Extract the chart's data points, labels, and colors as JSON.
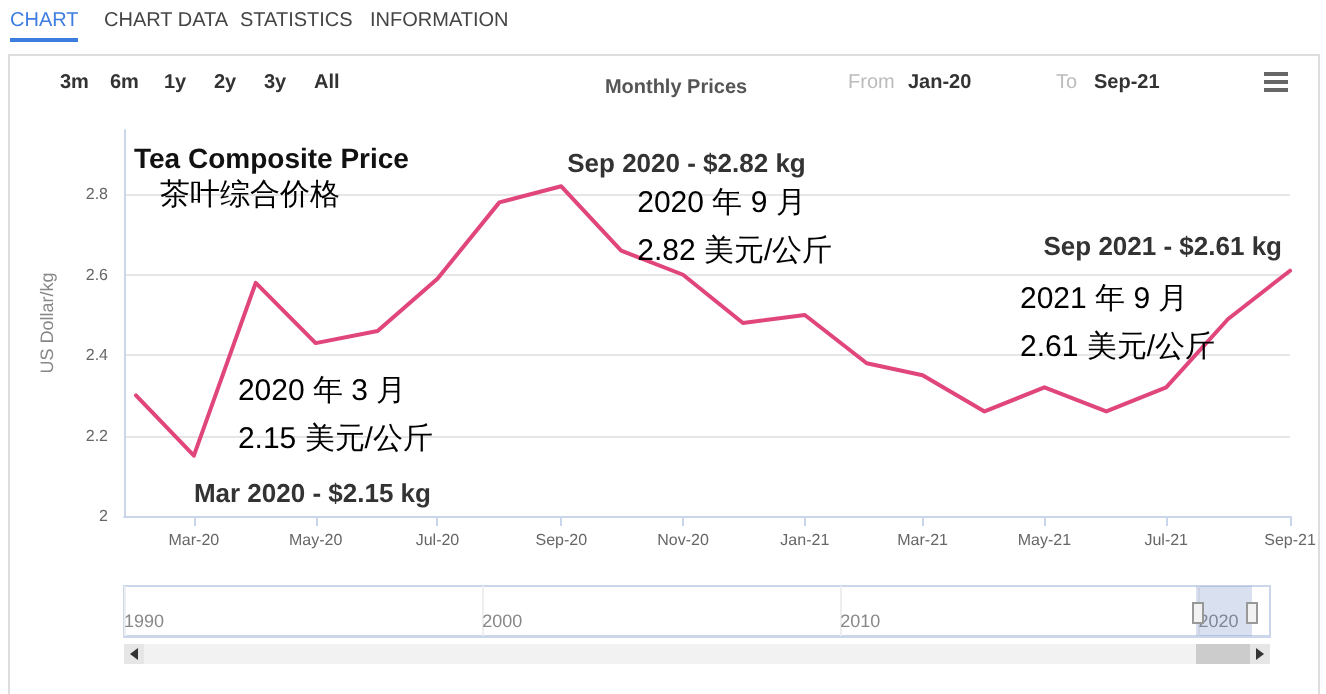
{
  "chart_data": {
    "type": "line",
    "title": "Monthly Prices",
    "subtitle": "Tea Composite Price",
    "ylabel": "US Dollar/kg",
    "x": [
      "2020-02",
      "2020-03",
      "2020-04",
      "2020-05",
      "2020-06",
      "2020-07",
      "2020-08",
      "2020-09",
      "2020-10",
      "2020-11",
      "2020-12",
      "2021-01",
      "2021-02",
      "2021-03",
      "2021-04",
      "2021-05",
      "2021-06",
      "2021-07",
      "2021-08",
      "2021-09"
    ],
    "series": [
      {
        "color": "#e0457b",
        "values": [
          2.3,
          2.15,
          2.58,
          2.43,
          2.46,
          2.59,
          2.78,
          2.82,
          2.66,
          2.6,
          2.48,
          2.5,
          2.38,
          2.35,
          2.26,
          2.32,
          2.26,
          2.32,
          2.49,
          2.61
        ]
      }
    ],
    "xlim": [
      "2020-01-26",
      "2021-09"
    ],
    "xticks": [
      {
        "value": "2020-03",
        "label": "Mar-20"
      },
      {
        "value": "2020-05",
        "label": "May-20"
      },
      {
        "value": "2020-07",
        "label": "Jul-20"
      },
      {
        "value": "2020-09",
        "label": "Sep-20"
      },
      {
        "value": "2020-11",
        "label": "Nov-20"
      },
      {
        "value": "2021-01",
        "label": "Jan-21"
      },
      {
        "value": "2021-03",
        "label": "Mar-21"
      },
      {
        "value": "2021-05",
        "label": "May-21"
      },
      {
        "value": "2021-07",
        "label": "Jul-21"
      },
      {
        "value": "2021-09",
        "label": "Sep-21"
      }
    ],
    "ylim": [
      2,
      2.96
    ],
    "yticks": [
      2,
      2.2,
      2.4,
      2.6,
      2.8
    ],
    "x2lim": [
      1990,
      2022
    ],
    "x2ticks": [
      1990,
      2000,
      2010,
      2020
    ],
    "grid": "y",
    "marker": "none",
    "annotations": [
      "CHART",
      "CHART DATA",
      "STATISTICS",
      "INFORMATION",
      "3m",
      "6m",
      "1y",
      "2y",
      "3y",
      "All",
      "From",
      "Jan-20",
      "To",
      "Sep-21",
      "茶叶综合价格",
      {
        "text": "Mar 2020 - $2.15 kg",
        "x": "2020-03",
        "y": 2.15
      },
      {
        "text": "2020 年 3 月",
        "x": "2020-03",
        "y": 2.15
      },
      {
        "text": "2.15 美元/公斤",
        "x": "2020-03",
        "y": 2.15
      },
      {
        "text": "Sep 2020 - $2.82 kg",
        "x": "2020-09",
        "y": 2.82
      },
      {
        "text": "2020 年 9 月",
        "x": "2020-09",
        "y": 2.82
      },
      {
        "text": "2.82 美元/公斤",
        "x": "2020-09",
        "y": 2.82
      },
      {
        "text": "Sep 2021 - $2.61 kg",
        "x": "2021-09",
        "y": 2.61
      },
      "2021 年 9 月",
      "2.61 美元/公斤"
    ]
  }
}
